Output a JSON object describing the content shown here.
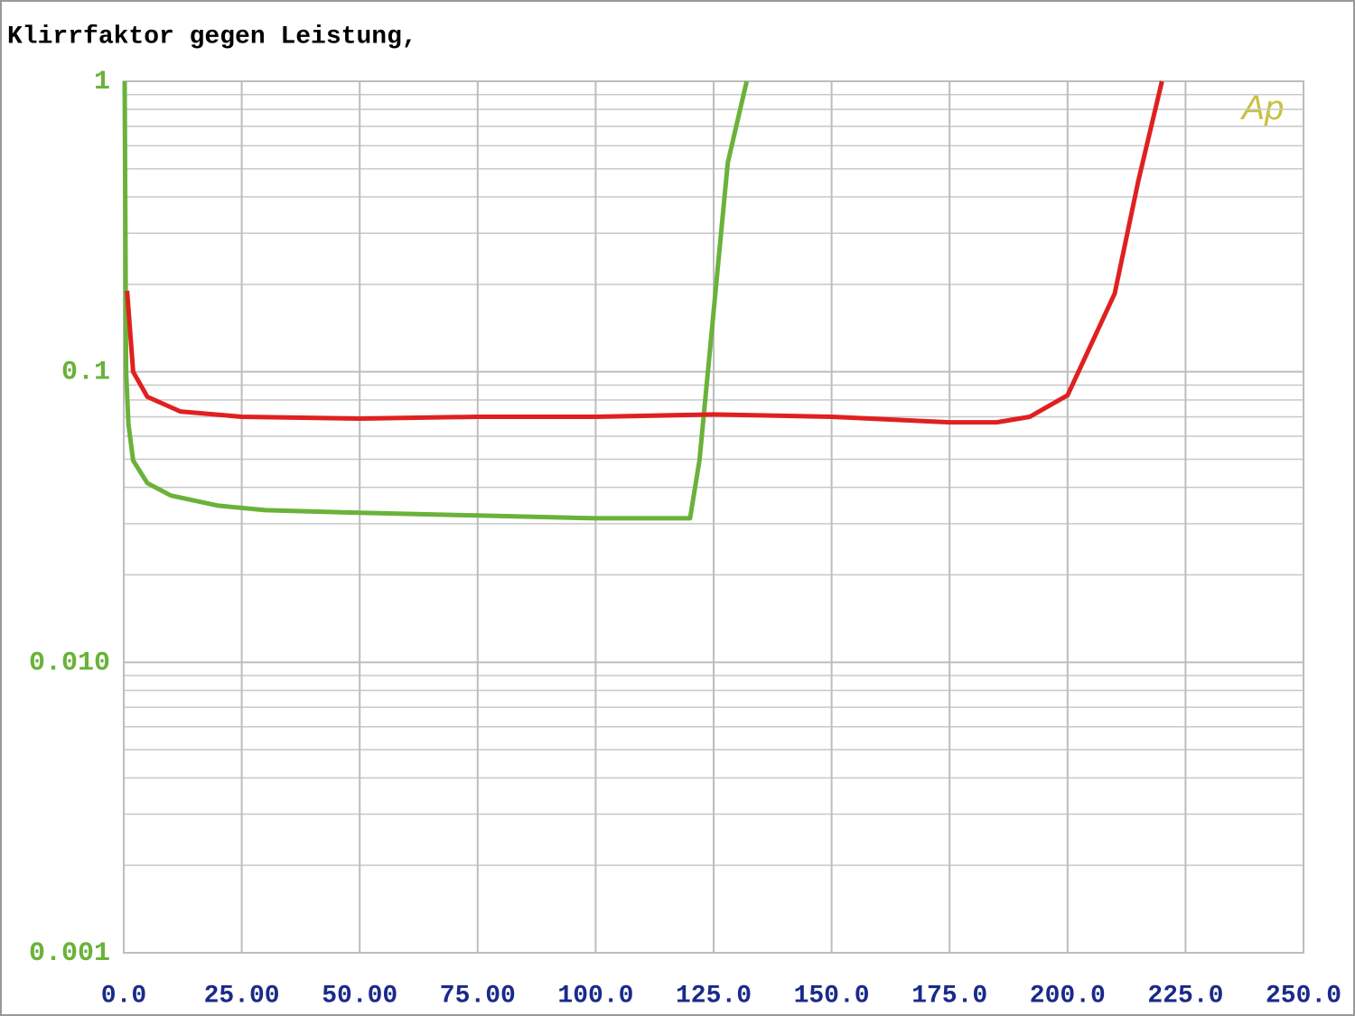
{
  "chart_data": {
    "type": "line",
    "title": "Klirrfaktor gegen Leistung,",
    "watermark": "Ap",
    "log_y": true,
    "grid": true,
    "xlim": [
      0,
      250
    ],
    "xticks": [
      {
        "value": 0,
        "label": "0.0"
      },
      {
        "value": 25,
        "label": "25.00"
      },
      {
        "value": 50,
        "label": "50.00"
      },
      {
        "value": 75,
        "label": "75.00"
      },
      {
        "value": 100,
        "label": "100.0"
      },
      {
        "value": 125,
        "label": "125.0"
      },
      {
        "value": 150,
        "label": "150.0"
      },
      {
        "value": 175,
        "label": "175.0"
      },
      {
        "value": 200,
        "label": "200.0"
      },
      {
        "value": 225,
        "label": "225.0"
      },
      {
        "value": 250,
        "label": "250.0"
      }
    ],
    "ylim": [
      0.001,
      1
    ],
    "yticks": [
      1,
      0.1,
      {
        "value": 0.01,
        "label": "0.010"
      },
      0.001
    ],
    "series": [
      {
        "color": "#6ab23a",
        "x": [
          0.2,
          0.5,
          1,
          2,
          5,
          10,
          20,
          30,
          50,
          75,
          100,
          120,
          122,
          124,
          126,
          128,
          132
        ],
        "values": [
          1,
          0.1,
          0.066,
          0.0495,
          0.0414,
          0.0375,
          0.0346,
          0.0334,
          0.0327,
          0.032,
          0.0313,
          0.0313,
          0.0495,
          0.109,
          0.239,
          0.525,
          1
        ]
      },
      {
        "color": "#e02020",
        "x": [
          0.7,
          2,
          5,
          12,
          25,
          50,
          75,
          100,
          125,
          150,
          175,
          185,
          192,
          200,
          210,
          215,
          220
        ],
        "values": [
          0.19,
          0.1,
          0.082,
          0.073,
          0.07,
          0.069,
          0.07,
          0.07,
          0.0713,
          0.07,
          0.067,
          0.067,
          0.07,
          0.083,
          0.186,
          0.455,
          1
        ]
      }
    ]
  }
}
